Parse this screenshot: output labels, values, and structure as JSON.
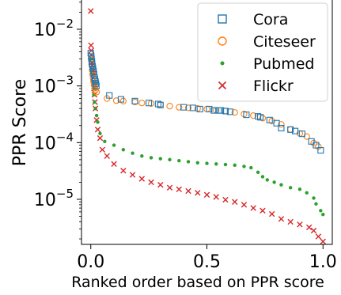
{
  "chart_data": {
    "type": "scatter",
    "xlabel": "Ranked order based on PPR score",
    "ylabel": "PPR Score",
    "x_scale": "linear",
    "y_scale": "log",
    "xlim": [
      -0.04,
      1.04
    ],
    "ylim": [
      1.6e-06,
      0.035
    ],
    "x_ticks": [
      {
        "value": 0.0,
        "label": "0.0"
      },
      {
        "value": 0.5,
        "label": "0.5"
      },
      {
        "value": 1.0,
        "label": "1.0"
      }
    ],
    "y_ticks": [
      {
        "value": 1e-05,
        "base": "10",
        "exp": "−5"
      },
      {
        "value": 0.0001,
        "base": "10",
        "exp": "−4"
      },
      {
        "value": 0.001,
        "base": "10",
        "exp": "−3"
      },
      {
        "value": 0.01,
        "base": "10",
        "exp": "−2"
      }
    ],
    "grid": false,
    "legend_position": "upper-right",
    "series": [
      {
        "name": "Cora",
        "marker": "square-open",
        "color": "#1f77b4",
        "points": [
          [
            0.0,
            0.0038
          ],
          [
            0.002,
            0.0033
          ],
          [
            0.003,
            0.003
          ],
          [
            0.005,
            0.0027
          ],
          [
            0.006,
            0.0024
          ],
          [
            0.008,
            0.0022
          ],
          [
            0.01,
            0.002
          ],
          [
            0.012,
            0.0018
          ],
          [
            0.014,
            0.0016
          ],
          [
            0.016,
            0.0014
          ],
          [
            0.018,
            0.0013
          ],
          [
            0.02,
            0.0012
          ],
          [
            0.022,
            0.0011
          ],
          [
            0.024,
            0.001
          ],
          [
            0.08,
            0.00068
          ],
          [
            0.13,
            0.00058
          ],
          [
            0.19,
            0.00054
          ],
          [
            0.25,
            0.0005
          ],
          [
            0.29,
            0.00048
          ],
          [
            0.3,
            0.00046
          ],
          [
            0.4,
            0.00042
          ],
          [
            0.44,
            0.00041
          ],
          [
            0.47,
            0.00039
          ],
          [
            0.51,
            0.00039
          ],
          [
            0.53,
            0.00037
          ],
          [
            0.55,
            0.00037
          ],
          [
            0.56,
            0.00037
          ],
          [
            0.58,
            0.00036
          ],
          [
            0.6,
            0.00035
          ],
          [
            0.67,
            0.00031
          ],
          [
            0.72,
            0.00029
          ],
          [
            0.73,
            0.00028
          ],
          [
            0.77,
            0.00025
          ],
          [
            0.8,
            0.00022
          ],
          [
            0.82,
            0.00018
          ],
          [
            0.86,
            0.00017
          ],
          [
            0.88,
            0.00016
          ],
          [
            0.91,
            0.000143
          ],
          [
            0.95,
            0.000105
          ],
          [
            0.97,
            9e-05
          ],
          [
            0.99,
            7.3e-05
          ]
        ]
      },
      {
        "name": "Citeseer",
        "marker": "circle-open",
        "color": "#ff7f0e",
        "points": [
          [
            0.002,
            0.003
          ],
          [
            0.004,
            0.0024
          ],
          [
            0.006,
            0.0019
          ],
          [
            0.008,
            0.0016
          ],
          [
            0.01,
            0.0014
          ],
          [
            0.012,
            0.0012
          ],
          [
            0.014,
            0.0011
          ],
          [
            0.016,
            0.001
          ],
          [
            0.018,
            0.00092
          ],
          [
            0.02,
            0.00085
          ],
          [
            0.025,
            0.00078
          ],
          [
            0.07,
            0.0006
          ],
          [
            0.11,
            0.00055
          ],
          [
            0.14,
            0.00054
          ],
          [
            0.19,
            0.00052
          ],
          [
            0.22,
            0.0005
          ],
          [
            0.26,
            0.00049
          ],
          [
            0.3,
            0.00047
          ],
          [
            0.34,
            0.00044
          ],
          [
            0.38,
            0.00042
          ],
          [
            0.42,
            0.00041
          ],
          [
            0.46,
            0.0004
          ],
          [
            0.5,
            0.00039
          ],
          [
            0.54,
            0.00037
          ],
          [
            0.58,
            0.00036
          ],
          [
            0.62,
            0.00034
          ],
          [
            0.66,
            0.00032
          ],
          [
            0.7,
            0.0003
          ],
          [
            0.74,
            0.00027
          ],
          [
            0.78,
            0.00024
          ],
          [
            0.82,
            0.00021
          ],
          [
            0.86,
            0.00017
          ],
          [
            0.9,
            0.000145
          ],
          [
            0.93,
            0.000128
          ],
          [
            0.96,
            9.8e-05
          ],
          [
            0.98,
            8.5e-05
          ]
        ]
      },
      {
        "name": "Pubmed",
        "marker": "dot",
        "color": "#2ca02c",
        "points": [
          [
            0.002,
            0.003
          ],
          [
            0.004,
            0.0021
          ],
          [
            0.006,
            0.0016
          ],
          [
            0.008,
            0.0012
          ],
          [
            0.01,
            0.0009
          ],
          [
            0.013,
            0.0007
          ],
          [
            0.016,
            0.00052
          ],
          [
            0.02,
            0.0004
          ],
          [
            0.025,
            0.0003
          ],
          [
            0.03,
            0.00023
          ],
          [
            0.04,
            0.000145
          ],
          [
            0.06,
            0.000105
          ],
          [
            0.1,
            9e-05
          ],
          [
            0.14,
            7.5e-05
          ],
          [
            0.18,
            6.5e-05
          ],
          [
            0.22,
            5.8e-05
          ],
          [
            0.26,
            5.4e-05
          ],
          [
            0.3,
            5.2e-05
          ],
          [
            0.34,
            5e-05
          ],
          [
            0.38,
            4.8e-05
          ],
          [
            0.42,
            4.6e-05
          ],
          [
            0.46,
            4.4e-05
          ],
          [
            0.5,
            4.3e-05
          ],
          [
            0.54,
            4.2e-05
          ],
          [
            0.58,
            4.1e-05
          ],
          [
            0.62,
            4e-05
          ],
          [
            0.66,
            3.8e-05
          ],
          [
            0.69,
            3.6e-05
          ],
          [
            0.72,
            3e-05
          ],
          [
            0.74,
            2.5e-05
          ],
          [
            0.76,
            2.2e-05
          ],
          [
            0.79,
            2e-05
          ],
          [
            0.82,
            1.8e-05
          ],
          [
            0.86,
            1.6e-05
          ],
          [
            0.9,
            1.5e-05
          ],
          [
            0.93,
            1.3e-05
          ],
          [
            0.96,
            1.05e-05
          ],
          [
            0.97,
            8.3e-06
          ],
          [
            0.99,
            6.3e-06
          ],
          [
            1.0,
            5.4e-06
          ]
        ]
      },
      {
        "name": "Flickr",
        "marker": "x",
        "color": "#d62728",
        "points": [
          [
            0.0,
            0.021
          ],
          [
            0.001,
            0.0052
          ],
          [
            0.002,
            0.0042
          ],
          [
            0.003,
            0.0035
          ],
          [
            0.004,
            0.003
          ],
          [
            0.005,
            0.0026
          ],
          [
            0.006,
            0.0023
          ],
          [
            0.007,
            0.002
          ],
          [
            0.008,
            0.0018
          ],
          [
            0.009,
            0.0016
          ],
          [
            0.01,
            0.0014
          ],
          [
            0.012,
            0.0011
          ],
          [
            0.014,
            0.0009
          ],
          [
            0.016,
            0.0007
          ],
          [
            0.018,
            0.00052
          ],
          [
            0.02,
            0.0004
          ],
          [
            0.025,
            0.00025
          ],
          [
            0.03,
            0.00017
          ],
          [
            0.04,
            0.00012
          ],
          [
            0.05,
            7.5e-05
          ],
          [
            0.07,
            5.8e-05
          ],
          [
            0.1,
            4.2e-05
          ],
          [
            0.14,
            3.2e-05
          ],
          [
            0.18,
            2.7e-05
          ],
          [
            0.22,
            2.3e-05
          ],
          [
            0.26,
            2e-05
          ],
          [
            0.3,
            1.8e-05
          ],
          [
            0.34,
            1.6e-05
          ],
          [
            0.38,
            1.5e-05
          ],
          [
            0.42,
            1.4e-05
          ],
          [
            0.46,
            1.3e-05
          ],
          [
            0.5,
            1.2e-05
          ],
          [
            0.54,
            1.1e-05
          ],
          [
            0.58,
            9.8e-06
          ],
          [
            0.62,
            9e-06
          ],
          [
            0.66,
            8e-06
          ],
          [
            0.7,
            7e-06
          ],
          [
            0.74,
            6.3e-06
          ],
          [
            0.78,
            5.5e-06
          ],
          [
            0.82,
            4.5e-06
          ],
          [
            0.86,
            4e-06
          ],
          [
            0.9,
            3.6e-06
          ],
          [
            0.94,
            3.2e-06
          ],
          [
            0.96,
            2.8e-06
          ],
          [
            0.98,
            2.2e-06
          ],
          [
            1.0,
            1.8e-06
          ]
        ]
      }
    ]
  }
}
